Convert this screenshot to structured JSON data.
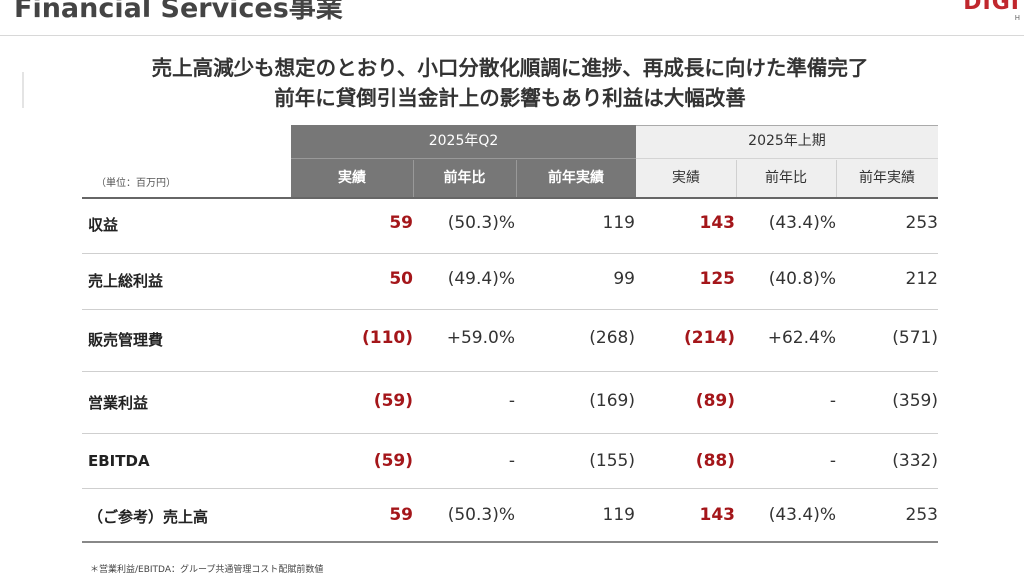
{
  "header": {
    "page_title": "Financial Services事業",
    "logo_text": "DIGI",
    "logo_sub": "H"
  },
  "headline": {
    "line1": "売上高減少も想定のとおり、小口分散化順調に進捗、再成長に向けた準備完了",
    "line2": "前年に貸倒引当金計上の影響もあり利益は大幅改善"
  },
  "table": {
    "unit": "（単位：百万円）",
    "groups": [
      {
        "label": "2025年Q2",
        "columns": [
          "実績",
          "前年比",
          "前年実績"
        ]
      },
      {
        "label": "2025年上期",
        "columns": [
          "実績",
          "前年比",
          "前年実績"
        ]
      }
    ],
    "rows": [
      {
        "label": "収益",
        "cells": [
          "59",
          "(50.3)%",
          "119",
          "143",
          "(43.4)%",
          "253"
        ]
      },
      {
        "label": "売上総利益",
        "cells": [
          "50",
          "(49.4)%",
          "99",
          "125",
          "(40.8)%",
          "212"
        ]
      },
      {
        "label": "販売管理費",
        "cells": [
          "(110)",
          "+59.0%",
          "(268)",
          "(214)",
          "+62.4%",
          "(571)"
        ]
      },
      {
        "label": "営業利益",
        "cells": [
          "(59)",
          "-",
          "(169)",
          "(89)",
          "-",
          "(359)"
        ]
      },
      {
        "label": "EBITDA",
        "cells": [
          "(59)",
          "-",
          "(155)",
          "(88)",
          "-",
          "(332)"
        ]
      },
      {
        "label": "（ご参考）売上高",
        "cells": [
          "59",
          "(50.3)%",
          "119",
          "143",
          "(43.4)%",
          "253"
        ]
      }
    ]
  },
  "footnote": "＊営業利益/EBITDA：グループ共通管理コスト配賦前数値",
  "colors": {
    "accent_red": "#a4161a",
    "header_dark": "#777777",
    "header_light": "#efefef",
    "logo_red": "#c0272d"
  }
}
